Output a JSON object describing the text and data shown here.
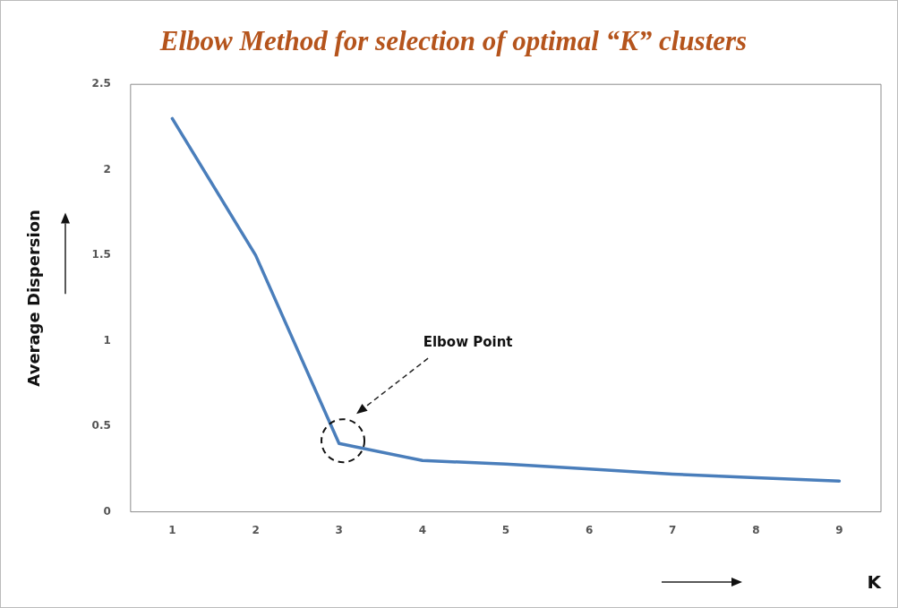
{
  "chart_data": {
    "type": "line",
    "title": "Elbow Method for selection of optimal “K” clusters",
    "xlabel": "K",
    "ylabel": "Average Dispersion",
    "categories": [
      "1",
      "2",
      "3",
      "4",
      "5",
      "6",
      "7",
      "8",
      "9"
    ],
    "series": [
      {
        "color": "#4a7ebb",
        "values": [
          2.3,
          1.5,
          0.4,
          0.3,
          0.28,
          0.25,
          0.22,
          0.2,
          0.18
        ]
      }
    ],
    "ylim": [
      0,
      2.5
    ],
    "yticks": [
      0,
      0.5,
      1,
      1.5,
      2,
      2.5
    ],
    "grid": false,
    "legend": false,
    "marker": "none",
    "line_style": "solid",
    "annotations": [
      "Elbow Point"
    ]
  }
}
